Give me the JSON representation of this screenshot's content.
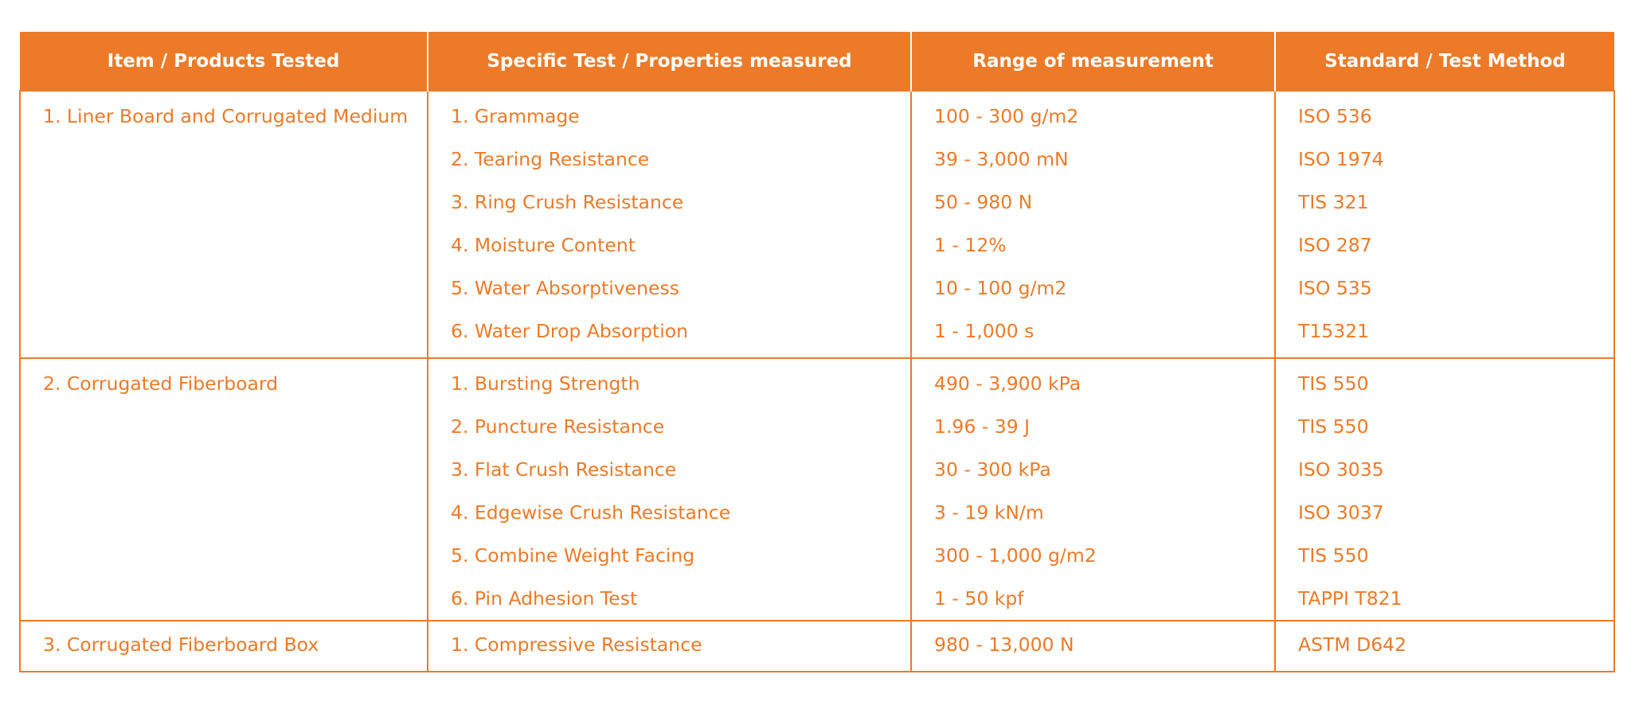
{
  "table": {
    "headers": [
      "Item / Products Tested",
      "Specific Test / Properties measured",
      "Range of measurement",
      "Standard / Test Method"
    ],
    "groups": [
      {
        "item": "1. Liner Board and Corrugated Medium",
        "tests": [
          "1. Grammage",
          "2. Tearing Resistance",
          "3. Ring Crush Resistance",
          "4. Moisture Content",
          "5. Water Absorptiveness",
          "6. Water Drop Absorption"
        ],
        "ranges": [
          "100 - 300 g/m2",
          "39 - 3,000 mN",
          "50 - 980 N",
          "1 - 12%",
          "10 - 100 g/m2",
          "1 - 1,000 s"
        ],
        "standards": [
          "ISO 536",
          "ISO 1974",
          "TIS 321",
          "ISO 287",
          "ISO 535",
          "T15321"
        ]
      },
      {
        "item": "2. Corrugated Fiberboard",
        "tests": [
          "1. Bursting Strength",
          "2. Puncture Resistance",
          "3. Flat Crush Resistance",
          "4. Edgewise Crush Resistance",
          "5. Combine Weight Facing",
          "6. Pin Adhesion Test"
        ],
        "ranges": [
          "490 - 3,900 kPa",
          "1.96 - 39 J",
          "30 - 300 kPa",
          "3 - 19 kN/m",
          "300 - 1,000 g/m2",
          "1 - 50 kpf"
        ],
        "standards": [
          "TIS 550",
          "TIS 550",
          "ISO 3035",
          "ISO 3037",
          "TIS 550",
          "TAPPI T821"
        ]
      },
      {
        "item": "3. Corrugated Fiberboard Box",
        "tests": [
          "1. Compressive Resistance"
        ],
        "ranges": [
          "980 - 13,000 N"
        ],
        "standards": [
          "ASTM D642"
        ]
      }
    ]
  },
  "colors": {
    "accent": "#ed7a28",
    "header_text": "#ffffff"
  }
}
